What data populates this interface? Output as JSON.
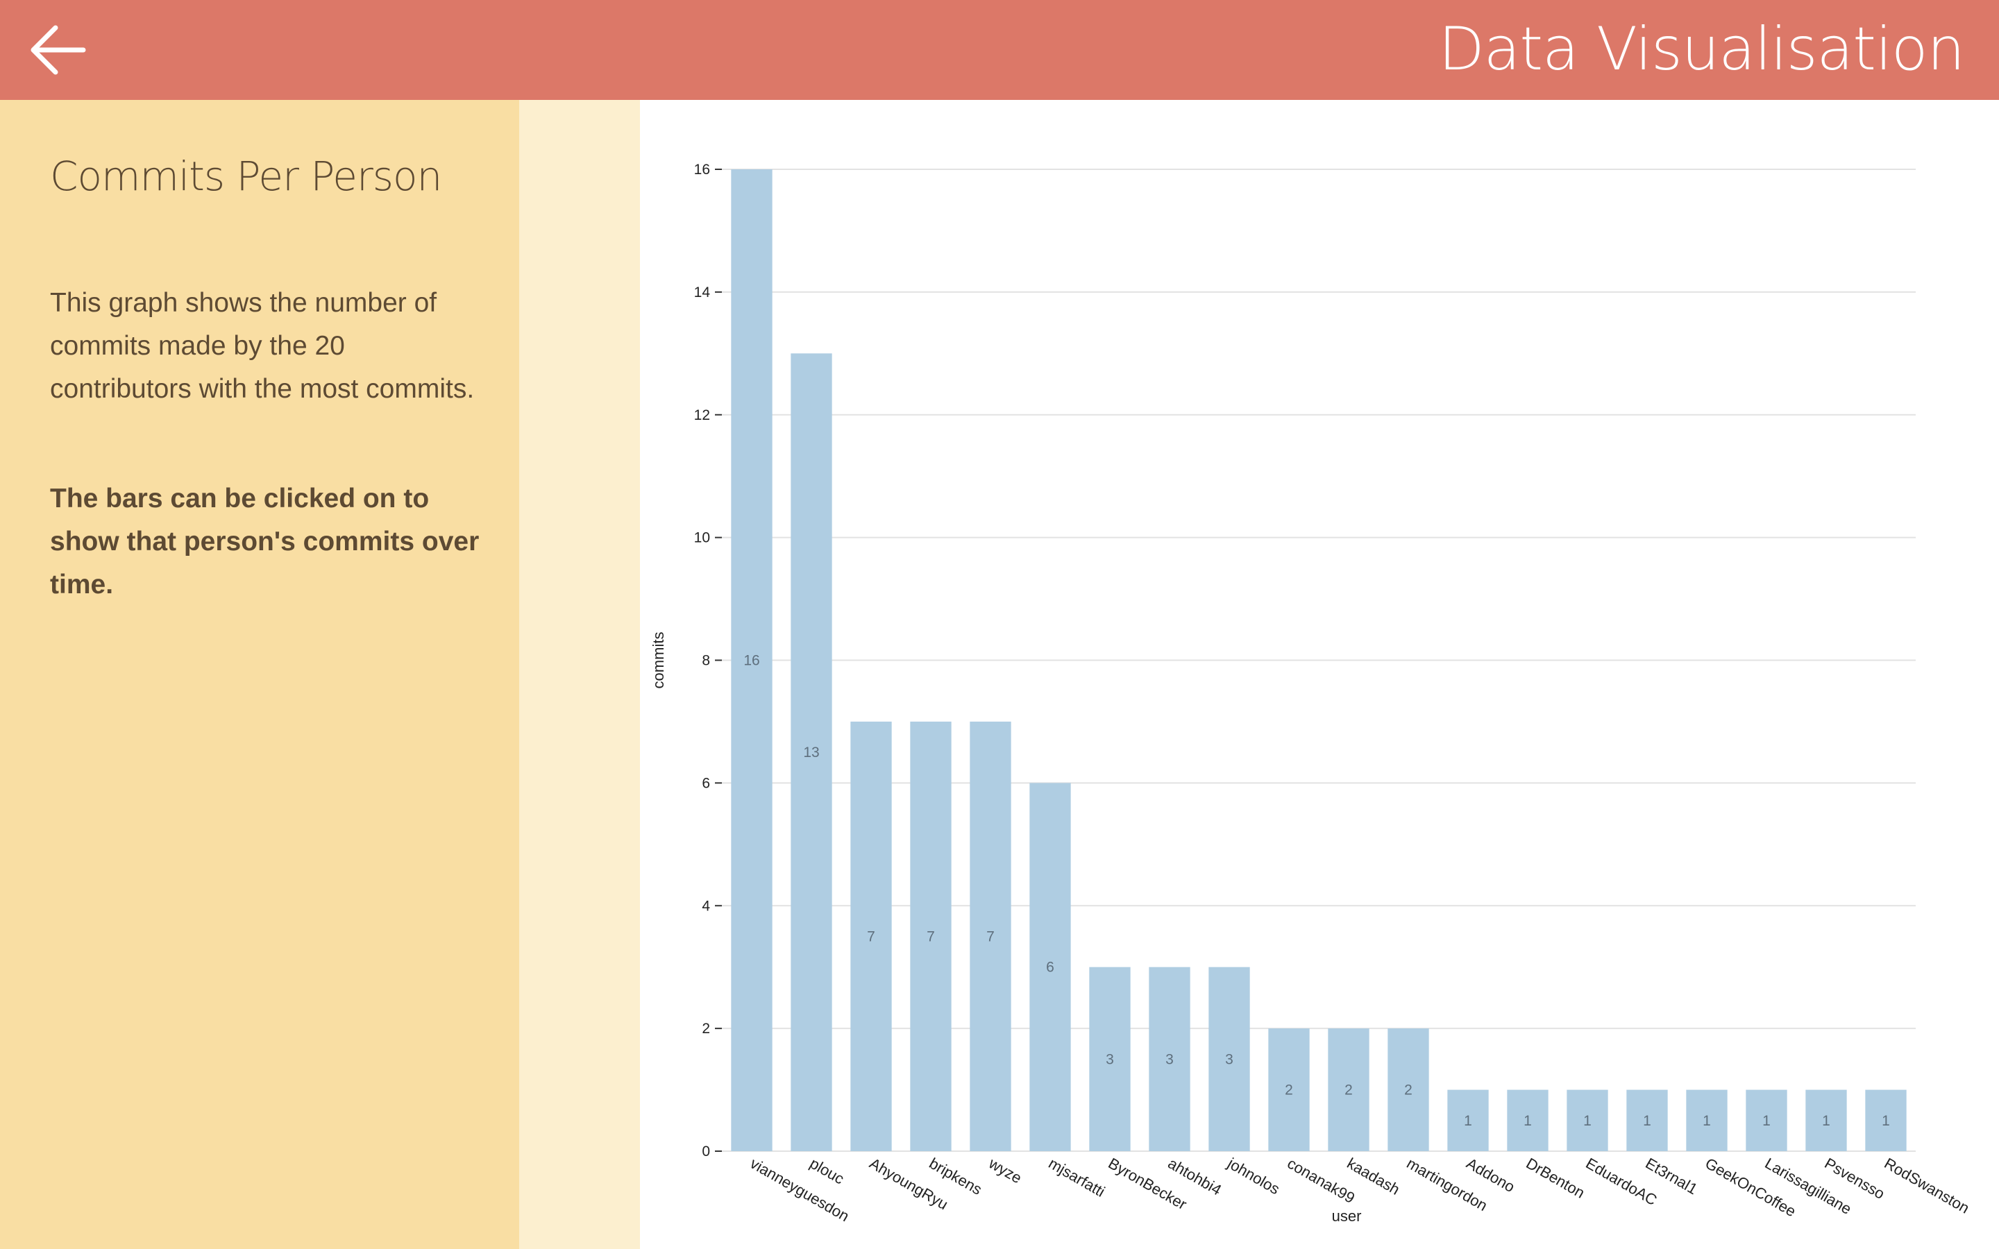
{
  "header": {
    "title": "Data Visualisation",
    "back_icon": "arrow-left-icon",
    "background": "#dc7868"
  },
  "sidebar": {
    "title": "Commits Per Person",
    "description": "This graph shows the number of commits made by the 20 contributors with the most commits.",
    "note": "The bars can be clicked on to show that person's commits over time.",
    "background": "#f9dea3"
  },
  "chart_data": {
    "type": "bar",
    "xlabel": "user",
    "ylabel": "commits",
    "ylim": [
      0,
      16
    ],
    "yticks": [
      0,
      2,
      4,
      6,
      8,
      10,
      12,
      14,
      16
    ],
    "grid": true,
    "bar_color": "#afcde2",
    "categories": [
      "vianneyguesdon",
      "plouc",
      "AhyoungRyu",
      "bripkens",
      "wyze",
      "mjsarfatti",
      "ByronBecker",
      "ahtohbi4",
      "johnolos",
      "conanak99",
      "kaadash",
      "martingordon",
      "Addono",
      "DrBenton",
      "EduardoAC",
      "Et3rnal1",
      "GeekOnCoffee",
      "Larissagilliane",
      "Psvensso",
      "RodSwanston"
    ],
    "values": [
      16,
      13,
      7,
      7,
      7,
      6,
      3,
      3,
      3,
      2,
      2,
      2,
      1,
      1,
      1,
      1,
      1,
      1,
      1,
      1
    ]
  }
}
